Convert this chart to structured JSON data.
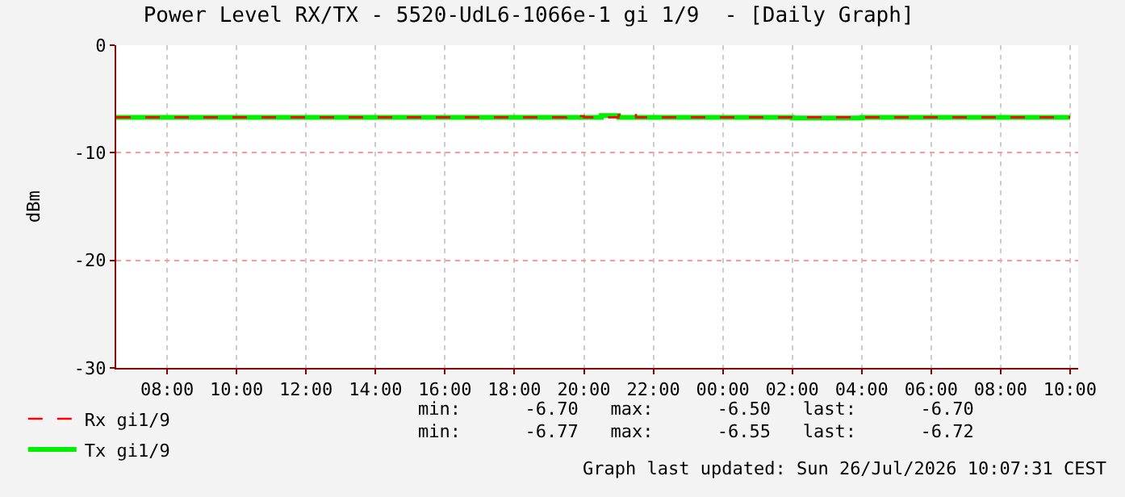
{
  "chart_data": {
    "type": "step",
    "title": "Power Level RX/TX - 5520-UdL6-1066e-1 gi 1/9  - [Daily Graph]",
    "ylabel": "dBm",
    "x": [
      "2026-07-25T06:32",
      "2026-07-25T08:00",
      "2026-07-25T10:00",
      "2026-07-25T12:00",
      "2026-07-25T14:00",
      "2026-07-25T16:00",
      "2026-07-25T18:00",
      "2026-07-25T19:30",
      "2026-07-25T20:00",
      "2026-07-25T20:30",
      "2026-07-25T21:00",
      "2026-07-25T21:30",
      "2026-07-25T22:00",
      "2026-07-26T00:00",
      "2026-07-26T02:00",
      "2026-07-26T04:00",
      "2026-07-26T06:00",
      "2026-07-26T08:00",
      "2026-07-26T10:00"
    ],
    "series": [
      {
        "name": "Rx gi1/9",
        "color": "#ff0000",
        "line_style": "dashed",
        "values": [
          -6.7,
          -6.7,
          -6.7,
          -6.7,
          -6.7,
          -6.7,
          -6.7,
          -6.6,
          -6.7,
          -6.7,
          -6.5,
          -6.7,
          -6.7,
          -6.7,
          -6.7,
          -6.7,
          -6.7,
          -6.7,
          -6.7
        ]
      },
      {
        "name": "Tx gi1/9",
        "color": "#00ee00",
        "values": [
          -6.72,
          -6.72,
          -6.72,
          -6.72,
          -6.72,
          -6.72,
          -6.72,
          -6.72,
          -6.72,
          -6.55,
          -6.72,
          -6.72,
          -6.72,
          -6.72,
          -6.77,
          -6.72,
          -6.72,
          -6.72,
          -6.72
        ]
      }
    ],
    "xlim": [
      "2026-07-25T06:32",
      "2026-07-26T10:14"
    ],
    "xticks": [
      {
        "value": "2026-07-25T08:00",
        "label": "08:00"
      },
      {
        "value": "2026-07-25T10:00",
        "label": "10:00"
      },
      {
        "value": "2026-07-25T12:00",
        "label": "12:00"
      },
      {
        "value": "2026-07-25T14:00",
        "label": "14:00"
      },
      {
        "value": "2026-07-25T16:00",
        "label": "16:00"
      },
      {
        "value": "2026-07-25T18:00",
        "label": "18:00"
      },
      {
        "value": "2026-07-25T20:00",
        "label": "20:00"
      },
      {
        "value": "2026-07-25T22:00",
        "label": "22:00"
      },
      {
        "value": "2026-07-26T00:00",
        "label": "00:00"
      },
      {
        "value": "2026-07-26T02:00",
        "label": "02:00"
      },
      {
        "value": "2026-07-26T04:00",
        "label": "04:00"
      },
      {
        "value": "2026-07-26T06:00",
        "label": "06:00"
      },
      {
        "value": "2026-07-26T08:00",
        "label": "08:00"
      },
      {
        "value": "2026-07-26T10:00",
        "label": "10:00"
      }
    ],
    "ylim": [
      -30,
      0
    ],
    "yticks": [
      -30,
      -20,
      -10,
      0
    ],
    "grid": true,
    "legend": "bottom left",
    "marker": "none",
    "line_style": "solid",
    "annotations": [
      "min:      -6.70   max:      -6.50   last:      -6.70",
      "min:      -6.77   max:      -6.55   last:      -6.72",
      "Graph last updated: Sun 26/Jul/2026 10:07:31 CEST"
    ]
  }
}
